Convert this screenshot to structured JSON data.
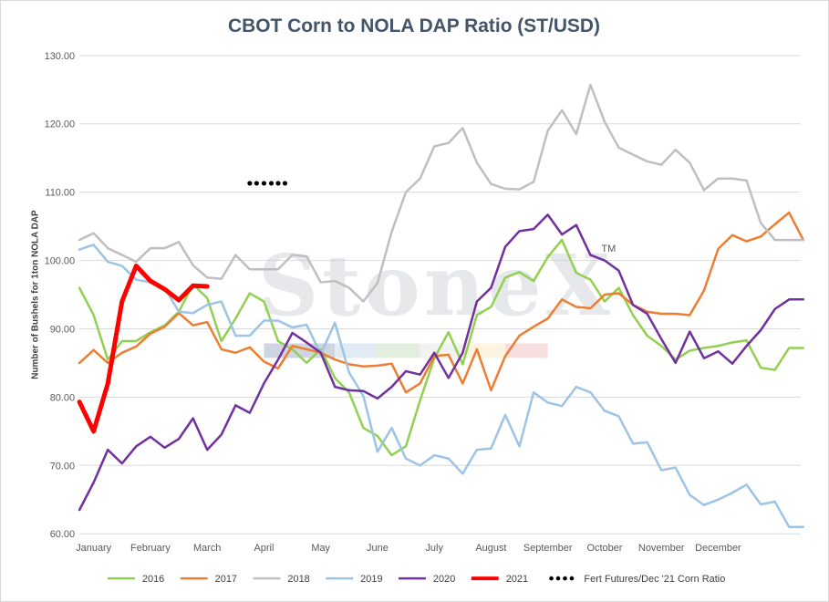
{
  "chart_data": {
    "type": "line",
    "title": "CBOT Corn to NOLA DAP Ratio (ST/USD)",
    "ylabel": "Number of Bushels for 1ton NOLA DAP",
    "ylim": [
      60,
      130
    ],
    "yticks": [
      "60.00",
      "70.00",
      "80.00",
      "90.00",
      "100.00",
      "110.00",
      "120.00",
      "130.00"
    ],
    "months": [
      "January",
      "February",
      "March",
      "April",
      "May",
      "June",
      "July",
      "August",
      "September",
      "October",
      "November",
      "December"
    ],
    "x_max": 12.7,
    "watermark": "StoneX",
    "watermark_mark": "TM",
    "series": [
      {
        "name": "2016",
        "color": "#92d050",
        "width": 2.5,
        "x": [
          0.0,
          0.25,
          0.5,
          0.75,
          1.0,
          1.25,
          1.5,
          1.75,
          2.0,
          2.25,
          2.5,
          2.75,
          3.0,
          3.25,
          3.5,
          3.75,
          4.0,
          4.25,
          4.5,
          4.75,
          5.0,
          5.25,
          5.5,
          5.75,
          6.0,
          6.25,
          6.5,
          6.75,
          7.0,
          7.25,
          7.5,
          7.75,
          8.0,
          8.25,
          8.5,
          8.75,
          9.0,
          9.25,
          9.5,
          9.75,
          10.0,
          10.25,
          10.5,
          10.75,
          11.0,
          11.25,
          11.5,
          11.75,
          12.0,
          12.25,
          12.5,
          12.75
        ],
        "y": [
          96.0,
          92.0,
          85.5,
          88.2,
          88.2,
          89.5,
          90.5,
          92.5,
          96.5,
          94.5,
          88.2,
          91.5,
          95.2,
          94.0,
          88.2,
          87.0,
          85.0,
          87.0,
          82.8,
          80.7,
          75.5,
          74.3,
          71.5,
          72.8,
          79.5,
          85.7,
          89.5,
          84.8,
          92.0,
          93.2,
          97.5,
          98.3,
          97.0,
          100.5,
          103.0,
          98.2,
          97.2,
          94.0,
          96.0,
          92.0,
          89.0,
          87.5,
          85.5,
          86.8,
          87.2,
          87.5,
          88.0,
          88.3,
          84.3,
          84.0,
          87.2,
          87.2
        ]
      },
      {
        "name": "2017",
        "color": "#ed7d31",
        "width": 2.5,
        "x": [
          0.0,
          0.25,
          0.5,
          0.75,
          1.0,
          1.25,
          1.5,
          1.75,
          2.0,
          2.25,
          2.5,
          2.75,
          3.0,
          3.25,
          3.5,
          3.75,
          4.0,
          4.25,
          4.5,
          4.75,
          5.0,
          5.25,
          5.5,
          5.75,
          6.0,
          6.25,
          6.5,
          6.75,
          7.0,
          7.25,
          7.5,
          7.75,
          8.0,
          8.25,
          8.5,
          8.75,
          9.0,
          9.25,
          9.5,
          9.75,
          10.0,
          10.25,
          10.5,
          10.75,
          11.0,
          11.25,
          11.5,
          11.75,
          12.0,
          12.25,
          12.5,
          12.75
        ],
        "y": [
          85.0,
          86.9,
          85.0,
          86.5,
          87.4,
          89.3,
          90.3,
          92.3,
          90.5,
          91.0,
          87.0,
          86.5,
          87.3,
          85.2,
          84.2,
          87.5,
          87.0,
          86.5,
          85.5,
          84.8,
          84.5,
          84.6,
          84.9,
          80.7,
          82.0,
          86.0,
          86.2,
          82.0,
          87.0,
          81.0,
          86.0,
          89.0,
          90.3,
          91.5,
          94.3,
          93.2,
          93.0,
          95.0,
          95.2,
          93.5,
          92.5,
          92.2,
          92.2,
          92.0,
          95.6,
          101.7,
          103.7,
          102.8,
          103.5,
          105.3,
          107.0,
          103.0
        ]
      },
      {
        "name": "2018",
        "color": "#bfbfbf",
        "width": 2.5,
        "x": [
          0.0,
          0.25,
          0.5,
          0.75,
          1.0,
          1.25,
          1.5,
          1.75,
          2.0,
          2.25,
          2.5,
          2.75,
          3.0,
          3.25,
          3.5,
          3.75,
          4.0,
          4.25,
          4.5,
          4.75,
          5.0,
          5.25,
          5.5,
          5.75,
          6.0,
          6.25,
          6.5,
          6.75,
          7.0,
          7.25,
          7.5,
          7.75,
          8.0,
          8.25,
          8.5,
          8.75,
          9.0,
          9.25,
          9.5,
          9.75,
          10.0,
          10.25,
          10.5,
          10.75,
          11.0,
          11.25,
          11.5,
          11.75,
          12.0,
          12.25,
          12.5,
          12.75
        ],
        "y": [
          103.0,
          104.0,
          101.8,
          100.8,
          99.8,
          101.8,
          101.8,
          102.7,
          99.3,
          97.5,
          97.3,
          100.8,
          98.7,
          98.7,
          98.7,
          100.8,
          100.6,
          96.8,
          97.0,
          96.0,
          94.0,
          96.7,
          104.2,
          110.0,
          112.0,
          116.7,
          117.2,
          119.4,
          114.3,
          111.2,
          110.5,
          110.4,
          111.5,
          119.0,
          122.0,
          118.5,
          125.7,
          120.3,
          116.5,
          115.5,
          114.5,
          114.0,
          116.2,
          114.3,
          110.3,
          112.0,
          112.0,
          111.7,
          105.5,
          103.0,
          103.0,
          103.0
        ]
      },
      {
        "name": "2019",
        "color": "#9dc3e6",
        "width": 2.5,
        "x": [
          0.0,
          0.25,
          0.5,
          0.75,
          1.0,
          1.25,
          1.5,
          1.75,
          2.0,
          2.25,
          2.5,
          2.75,
          3.0,
          3.25,
          3.5,
          3.75,
          4.0,
          4.25,
          4.5,
          4.75,
          5.0,
          5.25,
          5.5,
          5.75,
          6.0,
          6.25,
          6.5,
          6.75,
          7.0,
          7.25,
          7.5,
          7.75,
          8.0,
          8.25,
          8.5,
          8.75,
          9.0,
          9.25,
          9.5,
          9.75,
          10.0,
          10.25,
          10.5,
          10.75,
          11.0,
          11.25,
          11.5,
          11.75,
          12.0,
          12.25,
          12.5,
          12.75
        ],
        "y": [
          101.6,
          102.3,
          99.8,
          99.2,
          97.2,
          96.8,
          96.0,
          92.5,
          92.3,
          93.5,
          94.0,
          89.0,
          89.0,
          91.2,
          91.2,
          90.2,
          90.6,
          86.3,
          90.9,
          83.6,
          80.2,
          72.0,
          75.5,
          71.0,
          70.0,
          71.5,
          71.0,
          68.8,
          72.3,
          72.5,
          77.4,
          72.8,
          80.7,
          79.2,
          78.7,
          81.5,
          80.7,
          78.0,
          77.2,
          73.2,
          73.4,
          69.3,
          69.7,
          65.7,
          64.2,
          65.0,
          66.0,
          67.2,
          64.3,
          64.7,
          61.0,
          61.0
        ]
      },
      {
        "name": "2020",
        "color": "#7030a0",
        "width": 2.5,
        "x": [
          0.0,
          0.25,
          0.5,
          0.75,
          1.0,
          1.25,
          1.5,
          1.75,
          2.0,
          2.25,
          2.5,
          2.75,
          3.0,
          3.25,
          3.5,
          3.75,
          4.0,
          4.25,
          4.5,
          4.75,
          5.0,
          5.25,
          5.5,
          5.75,
          6.0,
          6.25,
          6.5,
          6.75,
          7.0,
          7.25,
          7.5,
          7.75,
          8.0,
          8.25,
          8.5,
          8.75,
          9.0,
          9.25,
          9.5,
          9.75,
          10.0,
          10.25,
          10.5,
          10.75,
          11.0,
          11.25,
          11.5,
          11.75,
          12.0,
          12.25,
          12.5,
          12.75
        ],
        "y": [
          63.5,
          67.5,
          72.3,
          70.3,
          72.8,
          74.2,
          72.6,
          73.9,
          76.9,
          72.3,
          74.5,
          78.8,
          77.7,
          82.0,
          85.5,
          89.4,
          88.0,
          86.5,
          81.5,
          81.0,
          80.9,
          79.8,
          81.5,
          83.8,
          83.3,
          86.5,
          82.8,
          86.5,
          94.0,
          96.0,
          102.0,
          104.3,
          104.6,
          106.7,
          103.8,
          105.2,
          100.8,
          100.0,
          98.5,
          93.5,
          92.2,
          88.5,
          85.0,
          89.6,
          85.7,
          86.7,
          84.9,
          87.5,
          89.8,
          92.9,
          94.3,
          94.3
        ]
      },
      {
        "name": "2021",
        "color": "#ff0000",
        "width": 5,
        "x": [
          0.0,
          0.25,
          0.5,
          0.75,
          1.0,
          1.25,
          1.5,
          1.75,
          2.0,
          2.25
        ],
        "y": [
          79.3,
          75.0,
          82.0,
          94.0,
          99.2,
          97.0,
          95.8,
          94.2,
          96.3,
          96.2
        ]
      }
    ],
    "fert_futures": {
      "name": "Fert Futures/Dec '21 Corn Ratio",
      "color": "#000000",
      "x": [
        3.0,
        3.12,
        3.25,
        3.38,
        3.5,
        3.62
      ],
      "y": [
        111.3,
        111.3,
        111.3,
        111.3,
        111.3,
        111.3
      ]
    },
    "color_bands": {
      "y": 86.8,
      "from_x": 3.25,
      "segments": [
        {
          "span": 1.25,
          "color": "#bfc7d6"
        },
        {
          "span": 0.75,
          "color": "#d6e4f0"
        },
        {
          "span": 0.75,
          "color": "#d9ead3"
        },
        {
          "span": 0.75,
          "color": "#eeeeee"
        },
        {
          "span": 0.75,
          "color": "#fdeed6"
        },
        {
          "span": 0.75,
          "color": "#f6d4d4"
        }
      ]
    }
  }
}
